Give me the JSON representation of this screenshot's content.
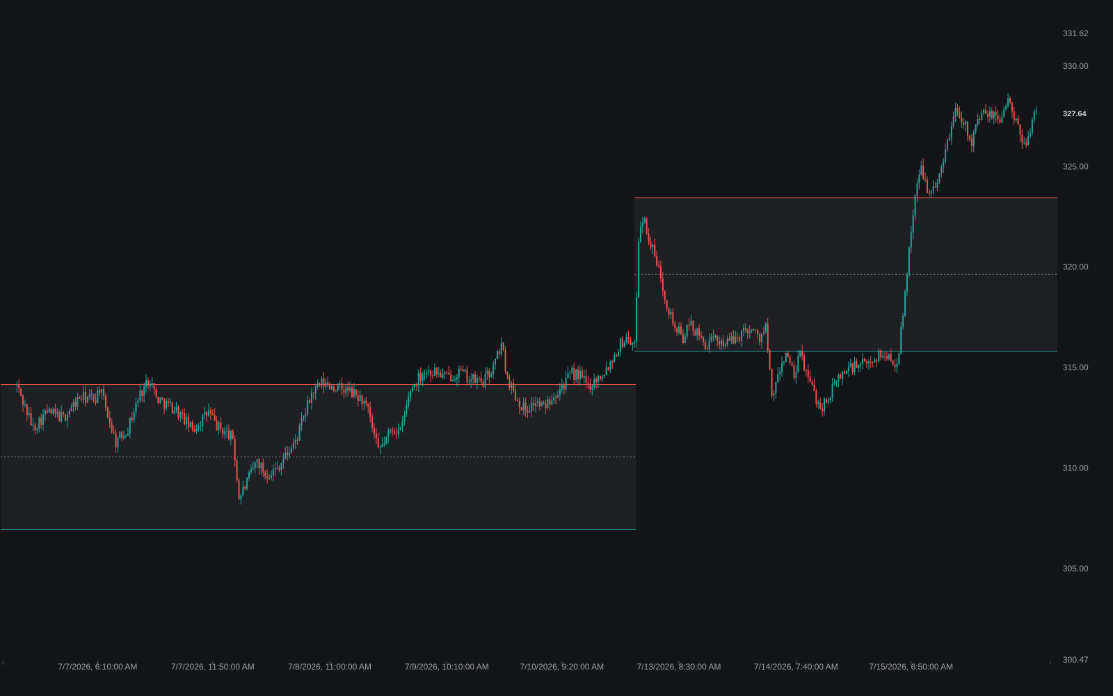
{
  "chart_data": {
    "type": "candlestick",
    "theme": {
      "background": "#131518",
      "up_color": "#26a69a",
      "down_color": "#ef5350",
      "range_fill": "#1e2024",
      "label_color": "#9aa0a6",
      "midline_color": "#888888"
    },
    "y_axis": {
      "min": 300.47,
      "max": 331.62,
      "ticks": [
        "331.62",
        "330.00",
        "325.00",
        "320.00",
        "315.00",
        "310.00",
        "305.00",
        "300.47"
      ],
      "current_price": "327.64"
    },
    "x_axis": {
      "tick_labels": [
        "7/7/2026, 6:10:00 AM",
        "7/7/2026, 11:50:00 AM",
        "7/8/2026, 11:00:00 AM",
        "7/9/2026, 10:10:00 AM",
        "7/10/2026, 9:20:00 AM",
        "7/13/2026, 8:30:00 AM",
        "7/14/2026, 7:40:00 AM",
        "7/15/2026, 6:50:00 AM"
      ],
      "bar_count": 520,
      "tick_bar_index": [
        47,
        104,
        162,
        220,
        277,
        335,
        393,
        450
      ]
    },
    "ranges": [
      {
        "start_bar": 0,
        "end_bar": 313,
        "high": 314.16,
        "low": 306.96,
        "mid": 310.56
      },
      {
        "start_bar": 314,
        "end_bar": 519,
        "high": 323.45,
        "low": 315.81,
        "mid": 319.63
      }
    ],
    "price_path": [
      [
        7,
        314.1
      ],
      [
        15,
        312.0
      ],
      [
        22,
        312.8
      ],
      [
        30,
        312.5
      ],
      [
        38,
        313.5
      ],
      [
        46,
        313.5
      ],
      [
        48,
        314.0
      ],
      [
        51,
        313.0
      ],
      [
        56,
        311.3
      ],
      [
        62,
        312.0
      ],
      [
        68,
        313.7
      ],
      [
        73,
        314.5
      ],
      [
        76,
        313.5
      ],
      [
        81,
        313.2
      ],
      [
        86,
        312.9
      ],
      [
        94,
        311.9
      ],
      [
        102,
        312.8
      ],
      [
        106,
        312.1
      ],
      [
        114,
        311.5
      ],
      [
        117,
        308.5
      ],
      [
        121,
        309.3
      ],
      [
        126,
        310.4
      ],
      [
        130,
        309.7
      ],
      [
        135,
        309.9
      ],
      [
        140,
        310.6
      ],
      [
        145,
        311.3
      ],
      [
        153,
        313.7
      ],
      [
        158,
        314.2
      ],
      [
        166,
        314.0
      ],
      [
        172,
        313.8
      ],
      [
        178,
        313.4
      ],
      [
        181,
        312.8
      ],
      [
        186,
        310.8
      ],
      [
        193,
        312.0
      ],
      [
        197,
        311.8
      ],
      [
        202,
        313.9
      ],
      [
        208,
        314.8
      ],
      [
        214,
        314.8
      ],
      [
        220,
        314.5
      ],
      [
        226,
        314.8
      ],
      [
        232,
        314.4
      ],
      [
        238,
        314.3
      ],
      [
        243,
        315.0
      ],
      [
        247,
        316.2
      ],
      [
        250,
        314.5
      ],
      [
        255,
        313.4
      ],
      [
        259,
        312.9
      ],
      [
        264,
        313.3
      ],
      [
        268,
        313.0
      ],
      [
        272,
        313.6
      ],
      [
        278,
        314.2
      ],
      [
        282,
        314.7
      ],
      [
        286,
        314.6
      ],
      [
        290,
        314.1
      ],
      [
        296,
        314.6
      ],
      [
        300,
        315.1
      ],
      [
        306,
        316.2
      ],
      [
        310,
        316.5
      ],
      [
        313,
        316.0
      ],
      [
        315,
        321.5
      ],
      [
        317,
        322.5
      ],
      [
        320,
        321.5
      ],
      [
        323,
        320.5
      ],
      [
        326,
        319.5
      ],
      [
        329,
        318.2
      ],
      [
        333,
        317.0
      ],
      [
        337,
        316.5
      ],
      [
        341,
        317.2
      ],
      [
        345,
        316.5
      ],
      [
        349,
        316.1
      ],
      [
        353,
        316.4
      ],
      [
        357,
        316.3
      ],
      [
        361,
        316.3
      ],
      [
        365,
        316.6
      ],
      [
        369,
        317.0
      ],
      [
        372,
        316.8
      ],
      [
        375,
        316.5
      ],
      [
        378,
        317.0
      ],
      [
        381,
        313.5
      ],
      [
        384,
        314.5
      ],
      [
        388,
        315.8
      ],
      [
        392,
        314.5
      ],
      [
        395,
        315.7
      ],
      [
        400,
        314.2
      ],
      [
        405,
        313.0
      ],
      [
        409,
        313.5
      ],
      [
        414,
        314.5
      ],
      [
        419,
        315.0
      ],
      [
        424,
        315.1
      ],
      [
        429,
        315.2
      ],
      [
        433,
        315.6
      ],
      [
        438,
        315.6
      ],
      [
        443,
        315.2
      ],
      [
        446,
        317.5
      ],
      [
        449,
        321.0
      ],
      [
        452,
        323.5
      ],
      [
        455,
        325.0
      ],
      [
        458,
        324.0
      ],
      [
        462,
        323.8
      ],
      [
        466,
        325.5
      ],
      [
        469,
        326.5
      ],
      [
        472,
        328.0
      ],
      [
        475,
        327.5
      ],
      [
        480,
        326.3
      ],
      [
        484,
        327.5
      ],
      [
        488,
        327.6
      ],
      [
        494,
        327.4
      ],
      [
        498,
        328.3
      ],
      [
        503,
        326.8
      ],
      [
        506,
        326.0
      ],
      [
        510,
        327.3
      ],
      [
        512,
        327.64
      ]
    ],
    "gaps": [
      [
        0,
        6
      ],
      [
        381,
        380
      ],
      [
        513,
        519
      ]
    ]
  }
}
